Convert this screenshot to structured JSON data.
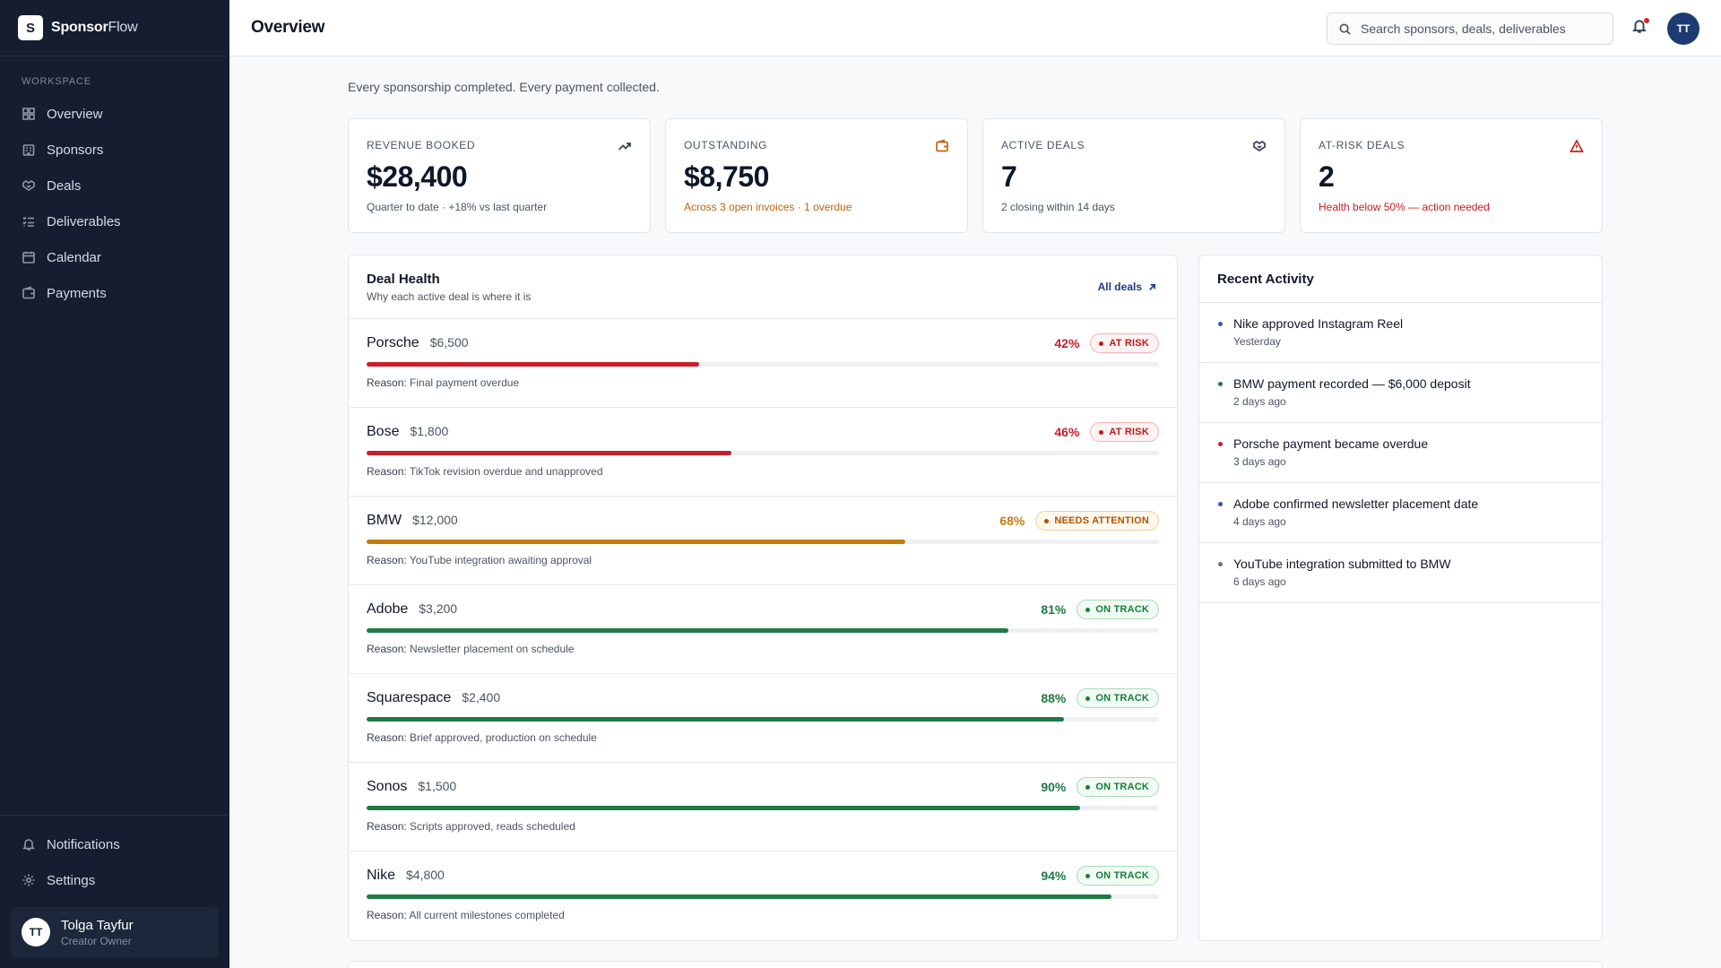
{
  "brand": {
    "logo_letter": "S",
    "name_bold": "Sponsor",
    "name_light": "Flow"
  },
  "sidebar": {
    "section_label": "Workspace",
    "items": [
      {
        "label": "Overview",
        "icon": "grid-icon"
      },
      {
        "label": "Sponsors",
        "icon": "building-icon"
      },
      {
        "label": "Deals",
        "icon": "handshake-icon"
      },
      {
        "label": "Deliverables",
        "icon": "checklist-icon"
      },
      {
        "label": "Calendar",
        "icon": "calendar-icon"
      },
      {
        "label": "Payments",
        "icon": "wallet-icon"
      }
    ],
    "bottom_items": [
      {
        "label": "Notifications",
        "icon": "bell-icon"
      },
      {
        "label": "Settings",
        "icon": "gear-icon"
      }
    ],
    "user": {
      "initials": "TT",
      "name": "Tolga Tayfur",
      "role": "Creator Owner"
    }
  },
  "header": {
    "title": "Overview",
    "search_placeholder": "Search sponsors, deals, deliverables",
    "avatar_initials": "TT"
  },
  "tagline": "Every sponsorship completed. Every payment collected.",
  "stats": [
    {
      "label": "Revenue Booked",
      "value": "$28,400",
      "sub": "Quarter to date · +18% vs last quarter",
      "sub_color": "#4b5563",
      "icon": "trending-up-icon"
    },
    {
      "label": "Outstanding",
      "value": "$8,750",
      "sub": "Across 3 open invoices · 1 overdue",
      "sub_color": "#c2620a",
      "icon": "wallet-icon"
    },
    {
      "label": "Active Deals",
      "value": "7",
      "sub": "2 closing within 14 days",
      "sub_color": "#4b5563",
      "icon": "handshake-icon"
    },
    {
      "label": "At-Risk Deals",
      "value": "2",
      "sub": "Health below 50% — action needed",
      "sub_color": "#c81e1e",
      "icon": "alert-triangle-icon"
    }
  ],
  "deal_health": {
    "title": "Deal Health",
    "subtitle": "Why each active deal is where it is",
    "link_label": "All deals",
    "reason_prefix": "Reason:",
    "deals": [
      {
        "name": "Porsche",
        "amount": "$6,500",
        "health": 42,
        "pct_label": "42%",
        "status": "AT RISK",
        "status_kind": "risk",
        "reason": "Final payment overdue"
      },
      {
        "name": "Bose",
        "amount": "$1,800",
        "health": 46,
        "pct_label": "46%",
        "status": "AT RISK",
        "status_kind": "risk",
        "reason": "TikTok revision overdue and unapproved"
      },
      {
        "name": "BMW",
        "amount": "$12,000",
        "health": 68,
        "pct_label": "68%",
        "status": "NEEDS ATTENTION",
        "status_kind": "attn",
        "reason": "YouTube integration awaiting approval"
      },
      {
        "name": "Adobe",
        "amount": "$3,200",
        "health": 81,
        "pct_label": "81%",
        "status": "ON TRACK",
        "status_kind": "ok",
        "reason": "Newsletter placement on schedule"
      },
      {
        "name": "Squarespace",
        "amount": "$2,400",
        "health": 88,
        "pct_label": "88%",
        "status": "ON TRACK",
        "status_kind": "ok",
        "reason": "Brief approved, production on schedule"
      },
      {
        "name": "Sonos",
        "amount": "$1,500",
        "health": 90,
        "pct_label": "90%",
        "status": "ON TRACK",
        "status_kind": "ok",
        "reason": "Scripts approved, reads scheduled"
      },
      {
        "name": "Nike",
        "amount": "$4,800",
        "health": 94,
        "pct_label": "94%",
        "status": "ON TRACK",
        "status_kind": "ok",
        "reason": "All current milestones completed"
      }
    ]
  },
  "status_colors": {
    "risk": "#c81e2e",
    "attn": "#c27c0e",
    "ok": "#1f7a45"
  },
  "recent_activity": {
    "title": "Recent Activity",
    "items": [
      {
        "text": "Nike approved Instagram Reel",
        "time": "Yesterday",
        "dot_color": "#2f5ba8"
      },
      {
        "text": "BMW payment recorded — $6,000 deposit",
        "time": "2 days ago",
        "dot_color": "#1f7a45"
      },
      {
        "text": "Porsche payment became overdue",
        "time": "3 days ago",
        "dot_color": "#c81e2e"
      },
      {
        "text": "Adobe confirmed newsletter placement date",
        "time": "4 days ago",
        "dot_color": "#2f5ba8"
      },
      {
        "text": "YouTube integration submitted to BMW",
        "time": "6 days ago",
        "dot_color": "#6b7280"
      }
    ]
  }
}
